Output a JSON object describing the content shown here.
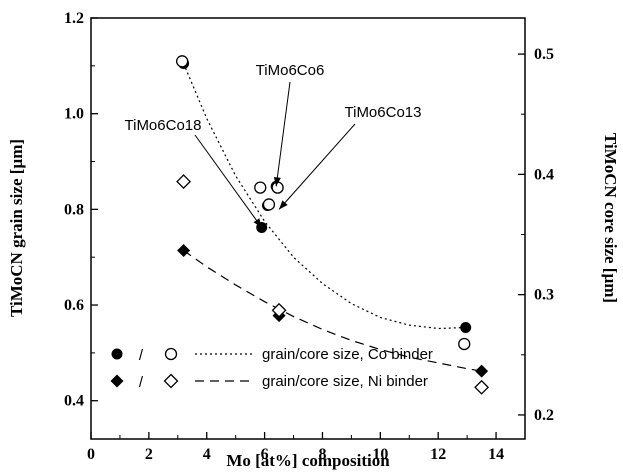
{
  "chart_data": {
    "type": "scatter",
    "title": "",
    "xlabel": "Mo [at%] composition",
    "ylabel": "TiMoCN grain size [µm]",
    "y2label": "TiMoCN core size [µm]",
    "xlim": [
      0,
      15
    ],
    "ylim": [
      0.32,
      1.2
    ],
    "y2lim": [
      0.18,
      0.53
    ],
    "xticks": [
      "0",
      "2",
      "4",
      "6",
      "8",
      "10",
      "12",
      "14"
    ],
    "xtick_values": [
      0,
      2,
      4,
      6,
      8,
      10,
      12,
      14
    ],
    "yticks": [
      "0.4",
      "0.6",
      "0.8",
      "1.0",
      "1.2"
    ],
    "ytick_values": [
      0.4,
      0.6,
      0.8,
      1.0,
      1.2
    ],
    "y2ticks": [
      "0.2",
      "0.3",
      "0.4",
      "0.5"
    ],
    "y2tick_values": [
      0.2,
      0.3,
      0.4,
      0.5
    ],
    "grid": false,
    "legend_position": "bottom-left",
    "series": [
      {
        "name": "grain size, Co binder",
        "axis": "left",
        "marker": "filled-circle",
        "x": [
          3.2,
          5.9,
          6.1,
          6.4,
          12.95
        ],
        "y": [
          1.105,
          0.762,
          0.808,
          0.848,
          0.553
        ]
      },
      {
        "name": "core size, Co binder",
        "axis": "right",
        "marker": "open-circle",
        "x": [
          3.15,
          5.85,
          6.15,
          6.45,
          12.9
        ],
        "y": [
          0.494,
          0.389,
          0.375,
          0.389,
          0.259
        ]
      },
      {
        "name": "grain size, Ni binder",
        "axis": "left",
        "marker": "filled-diamond",
        "x": [
          3.2,
          6.5,
          13.5
        ],
        "y": [
          0.714,
          0.578,
          0.462
        ]
      },
      {
        "name": "core size, Ni binder",
        "axis": "right",
        "marker": "open-diamond",
        "x": [
          3.2,
          6.5,
          13.5
        ],
        "y": [
          0.394,
          0.287,
          0.223
        ]
      }
    ],
    "fit_curves": [
      {
        "name": "Co binder fit",
        "style": "dotted",
        "axis": "left",
        "x": [
          3.2,
          4,
          5,
          6,
          7,
          8,
          9,
          10,
          11,
          12,
          12.95
        ],
        "y": [
          1.105,
          0.99,
          0.87,
          0.775,
          0.7,
          0.645,
          0.603,
          0.574,
          0.558,
          0.551,
          0.553
        ]
      },
      {
        "name": "Ni binder fit",
        "style": "dashed",
        "axis": "left",
        "x": [
          3.2,
          4,
          5,
          6,
          7,
          8,
          9,
          10,
          11,
          12,
          13,
          13.5
        ],
        "y": [
          0.714,
          0.68,
          0.642,
          0.607,
          0.576,
          0.549,
          0.526,
          0.507,
          0.491,
          0.479,
          0.467,
          0.462
        ]
      }
    ],
    "annotations": [
      {
        "text": "TiMo6Co6",
        "target_x": 6.4,
        "target_y": 0.848
      },
      {
        "text": "TiMo6Co13",
        "target_x": 6.5,
        "target_y": 0.8
      },
      {
        "text": "TiMo6Co18",
        "target_x": 5.9,
        "target_y": 0.762
      }
    ],
    "legend": [
      {
        "markers": [
          "filled-circle",
          "open-circle"
        ],
        "separator": "/",
        "line": "dotted",
        "label": "grain/core size, Co binder"
      },
      {
        "markers": [
          "filled-diamond",
          "open-diamond"
        ],
        "separator": "/",
        "line": "dashed",
        "label": "grain/core size, Ni  binder"
      }
    ]
  }
}
